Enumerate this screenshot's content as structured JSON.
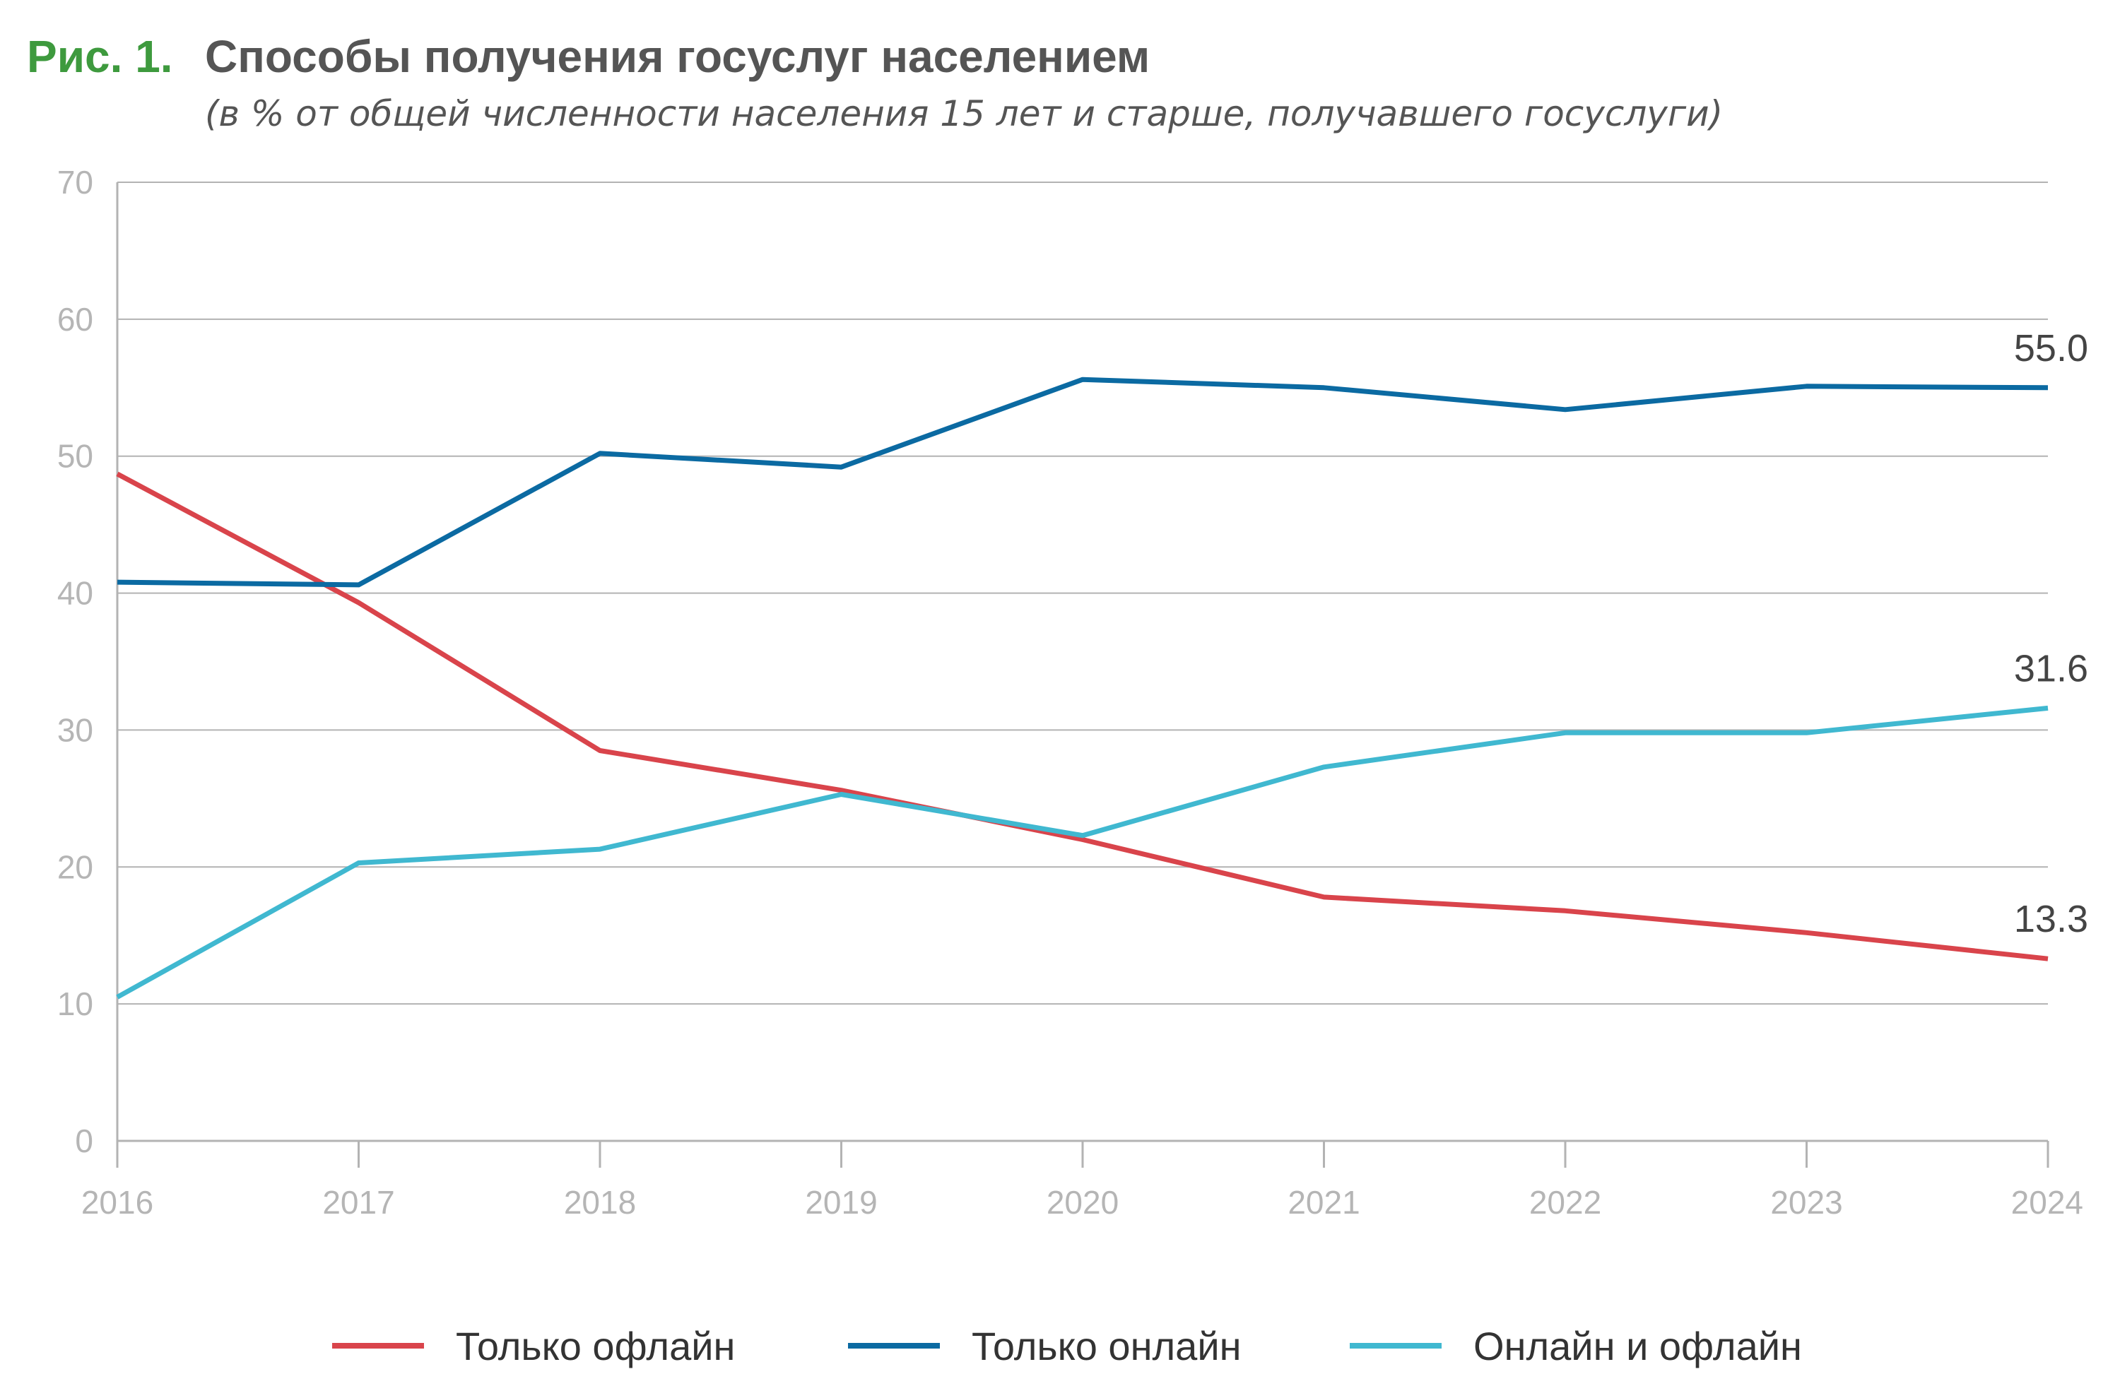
{
  "figure": {
    "label": "Рис. 1.",
    "title": "Способы получения госуслуг населением",
    "subtitle": "(в % от общей численности населения 15 лет и старше, получавшего госуслуги)"
  },
  "colors": {
    "offline": "#d9444b",
    "online": "#0b6aa2",
    "both": "#40b8d0",
    "grid": "#b3b3b3",
    "axis": "#b3b3b3",
    "tick_text": "#b5b5b5"
  },
  "chart_data": {
    "type": "line",
    "x": [
      "2016",
      "2017",
      "2018",
      "2019",
      "2020",
      "2021",
      "2022",
      "2023",
      "2024"
    ],
    "ylim": [
      0,
      70
    ],
    "yticks": [
      "0",
      "10",
      "20",
      "30",
      "40",
      "50",
      "60",
      "70"
    ],
    "grid": "horizontal",
    "legend_position": "bottom",
    "series": [
      {
        "name": "Только офлайн",
        "color": "#d9444b",
        "values": [
          48.7,
          39.3,
          28.5,
          25.6,
          22.0,
          17.8,
          16.8,
          15.2,
          13.3
        ],
        "end_label": "13.3"
      },
      {
        "name": "Только онлайн",
        "color": "#0b6aa2",
        "values": [
          40.8,
          40.6,
          50.2,
          49.2,
          55.6,
          55.0,
          53.4,
          55.1,
          55.0
        ],
        "end_label": "55.0"
      },
      {
        "name": "Онлайн и офлайн",
        "color": "#40b8d0",
        "values": [
          10.5,
          20.3,
          21.3,
          25.3,
          22.3,
          27.3,
          29.8,
          29.8,
          31.6
        ],
        "end_label": "31.6"
      }
    ]
  }
}
